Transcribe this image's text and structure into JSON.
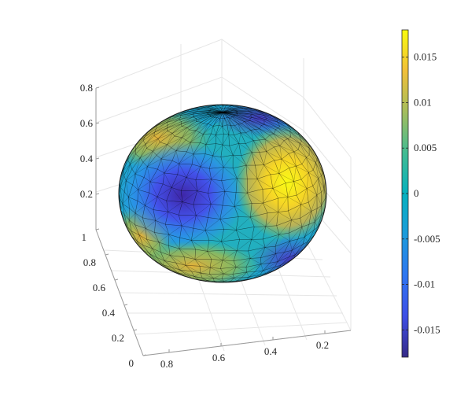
{
  "chart_data": {
    "type": "surface3d",
    "title": "",
    "xlabel": "",
    "ylabel": "",
    "zlabel": "",
    "grid": true,
    "shading": "faceted triangular mesh",
    "colormap": "parula",
    "x_ticks": [
      "0.8",
      "0.6",
      "0.4",
      "0.2"
    ],
    "x_tick_values": [
      0.8,
      0.6,
      0.4,
      0.2
    ],
    "y_ticks": [
      "0",
      "0.2",
      "0.4",
      "0.6",
      "0.8",
      "1"
    ],
    "y_tick_values": [
      0,
      0.2,
      0.4,
      0.6,
      0.8,
      1
    ],
    "z_ticks": [
      "0.2",
      "0.4",
      "0.6",
      "0.8"
    ],
    "z_tick_values": [
      0.2,
      0.4,
      0.6,
      0.8
    ],
    "colorbar": {
      "location": "right",
      "clim": [
        -0.018,
        0.018
      ],
      "ticks": [
        "0.015",
        "0.01",
        "0.005",
        "0",
        "-0.005",
        "-0.01",
        "-0.015"
      ],
      "tick_values": [
        0.015,
        0.01,
        0.005,
        0,
        -0.005,
        -0.01,
        -0.015
      ]
    },
    "field_features": [
      {
        "kind": "minimum",
        "value": -0.018,
        "region": "left-center"
      },
      {
        "kind": "maximum",
        "value": 0.018,
        "region": "right-center"
      }
    ]
  }
}
